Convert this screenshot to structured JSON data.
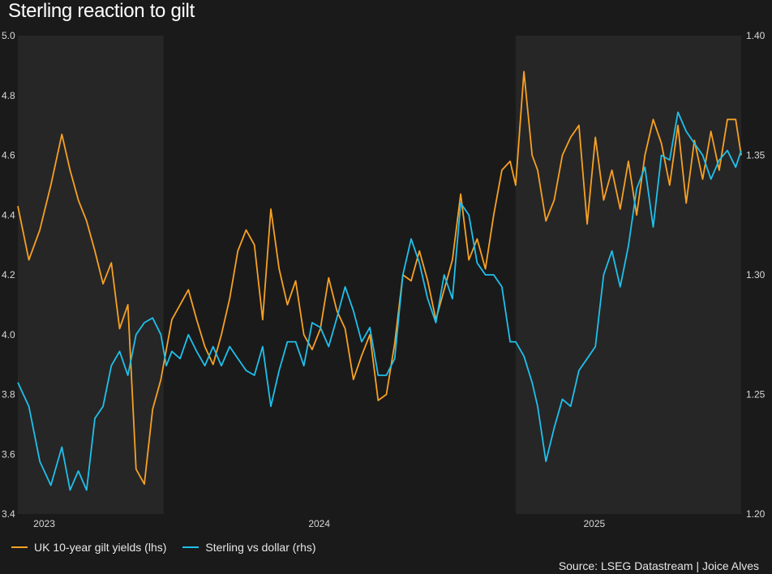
{
  "chart_data": {
    "type": "line",
    "title": "Sterling reaction to gilt",
    "source": "Source: LSEG Datastream | Joice Alves",
    "x_range": [
      2022.91,
      2025.54
    ],
    "x_ticks": [
      {
        "label": "2023",
        "value": 2023.0
      },
      {
        "label": "2024",
        "value": 2024.0
      },
      {
        "label": "2025",
        "value": 2025.0
      }
    ],
    "shaded_periods": [
      [
        2022.91,
        2023.44
      ],
      [
        2024.72,
        2025.54
      ]
    ],
    "y_left": {
      "label": "UK 10-year gilt yields (lhs)",
      "lim": [
        3.4,
        5.0
      ],
      "ticks": [
        "3.4",
        "3.6",
        "3.8",
        "4.0",
        "4.2",
        "4.4",
        "4.6",
        "4.8",
        "5.0"
      ]
    },
    "y_right": {
      "label": "Sterling vs dollar (rhs)",
      "lim": [
        1.2,
        1.4
      ],
      "ticks": [
        "1.20",
        "1.25",
        "1.30",
        "1.35",
        "1.40"
      ]
    },
    "series": [
      {
        "name": "UK 10-year gilt yields (lhs)",
        "axis": "left",
        "color": "#f7a124",
        "x": [
          2022.91,
          2022.95,
          2022.99,
          2023.03,
          2023.07,
          2023.1,
          2023.13,
          2023.16,
          2023.19,
          2023.22,
          2023.25,
          2023.28,
          2023.31,
          2023.34,
          2023.37,
          2023.4,
          2023.43,
          2023.45,
          2023.47,
          2023.5,
          2023.53,
          2023.56,
          2023.59,
          2023.62,
          2023.65,
          2023.68,
          2023.71,
          2023.74,
          2023.77,
          2023.8,
          2023.83,
          2023.86,
          2023.89,
          2023.92,
          2023.95,
          2023.98,
          2024.01,
          2024.04,
          2024.07,
          2024.1,
          2024.13,
          2024.16,
          2024.19,
          2024.22,
          2024.25,
          2024.28,
          2024.31,
          2024.34,
          2024.37,
          2024.4,
          2024.43,
          2024.46,
          2024.49,
          2024.52,
          2024.55,
          2024.58,
          2024.61,
          2024.64,
          2024.67,
          2024.7,
          2024.72,
          2024.75,
          2024.78,
          2024.8,
          2024.83,
          2024.86,
          2024.89,
          2024.92,
          2024.95,
          2024.98,
          2025.01,
          2025.04,
          2025.07,
          2025.1,
          2025.13,
          2025.16,
          2025.19,
          2025.22,
          2025.25,
          2025.28,
          2025.31,
          2025.34,
          2025.37,
          2025.4,
          2025.43,
          2025.46,
          2025.49,
          2025.52,
          2025.54
        ],
        "values": [
          4.43,
          4.25,
          4.35,
          4.5,
          4.67,
          4.55,
          4.45,
          4.38,
          4.28,
          4.17,
          4.24,
          4.02,
          4.1,
          3.55,
          3.5,
          3.75,
          3.85,
          3.95,
          4.05,
          4.1,
          4.15,
          4.05,
          3.96,
          3.9,
          4.0,
          4.12,
          4.28,
          4.35,
          4.3,
          4.05,
          4.42,
          4.22,
          4.1,
          4.18,
          4.0,
          3.95,
          4.02,
          4.19,
          4.08,
          4.02,
          3.85,
          3.93,
          4.0,
          3.78,
          3.8,
          3.97,
          4.2,
          4.18,
          4.28,
          4.18,
          4.05,
          4.15,
          4.25,
          4.47,
          4.25,
          4.32,
          4.22,
          4.4,
          4.55,
          4.58,
          4.5,
          4.88,
          4.6,
          4.55,
          4.38,
          4.45,
          4.6,
          4.66,
          4.7,
          4.37,
          4.66,
          4.45,
          4.55,
          4.42,
          4.58,
          4.4,
          4.6,
          4.72,
          4.64,
          4.5,
          4.7,
          4.44,
          4.65,
          4.52,
          4.68,
          4.55,
          4.72,
          4.72,
          4.6
        ]
      },
      {
        "name": "Sterling vs dollar (rhs)",
        "axis": "right",
        "color": "#1fc0ec",
        "x": [
          2022.91,
          2022.95,
          2022.99,
          2023.03,
          2023.07,
          2023.1,
          2023.13,
          2023.16,
          2023.19,
          2023.22,
          2023.25,
          2023.28,
          2023.31,
          2023.34,
          2023.37,
          2023.4,
          2023.43,
          2023.45,
          2023.47,
          2023.5,
          2023.53,
          2023.56,
          2023.59,
          2023.62,
          2023.65,
          2023.68,
          2023.71,
          2023.74,
          2023.77,
          2023.8,
          2023.83,
          2023.86,
          2023.89,
          2023.92,
          2023.95,
          2023.98,
          2024.01,
          2024.04,
          2024.07,
          2024.1,
          2024.13,
          2024.16,
          2024.19,
          2024.22,
          2024.25,
          2024.28,
          2024.31,
          2024.34,
          2024.37,
          2024.4,
          2024.43,
          2024.46,
          2024.49,
          2024.52,
          2024.55,
          2024.58,
          2024.61,
          2024.64,
          2024.67,
          2024.7,
          2024.72,
          2024.75,
          2024.78,
          2024.8,
          2024.83,
          2024.86,
          2024.89,
          2024.92,
          2024.95,
          2024.98,
          2025.01,
          2025.04,
          2025.07,
          2025.1,
          2025.13,
          2025.16,
          2025.19,
          2025.22,
          2025.25,
          2025.28,
          2025.31,
          2025.34,
          2025.37,
          2025.4,
          2025.43,
          2025.46,
          2025.49,
          2025.52,
          2025.54
        ],
        "values": [
          1.255,
          1.245,
          1.222,
          1.212,
          1.228,
          1.21,
          1.218,
          1.21,
          1.24,
          1.245,
          1.262,
          1.268,
          1.258,
          1.275,
          1.28,
          1.282,
          1.275,
          1.262,
          1.268,
          1.265,
          1.275,
          1.268,
          1.262,
          1.27,
          1.262,
          1.27,
          1.265,
          1.26,
          1.258,
          1.27,
          1.245,
          1.26,
          1.272,
          1.272,
          1.262,
          1.28,
          1.278,
          1.27,
          1.282,
          1.295,
          1.285,
          1.272,
          1.278,
          1.258,
          1.258,
          1.265,
          1.3,
          1.315,
          1.305,
          1.29,
          1.28,
          1.3,
          1.29,
          1.33,
          1.325,
          1.305,
          1.3,
          1.3,
          1.295,
          1.272,
          1.272,
          1.266,
          1.255,
          1.245,
          1.222,
          1.236,
          1.248,
          1.245,
          1.26,
          1.265,
          1.27,
          1.3,
          1.31,
          1.295,
          1.312,
          1.336,
          1.345,
          1.32,
          1.35,
          1.348,
          1.368,
          1.36,
          1.355,
          1.35,
          1.34,
          1.348,
          1.352,
          1.345,
          1.352
        ]
      }
    ]
  }
}
